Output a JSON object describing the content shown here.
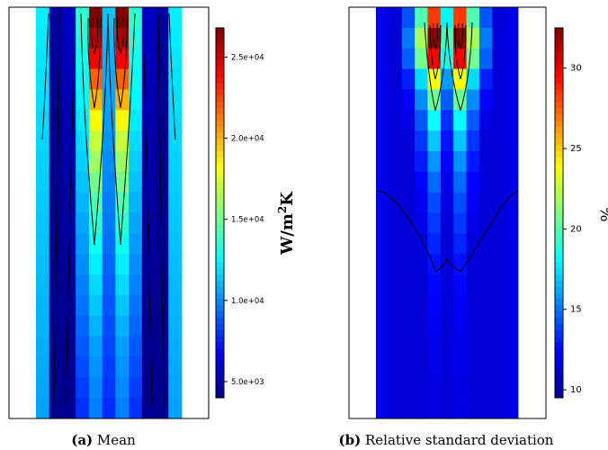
{
  "chart_data": [
    {
      "type": "heatmap",
      "panel_label": "(a)",
      "caption": "Mean",
      "colorbar": {
        "range": [
          4000,
          26800
        ],
        "ticks": [
          {
            "value": 5000,
            "label": "5.0e+03"
          },
          {
            "value": 10000,
            "label": "1.0e+04"
          },
          {
            "value": 15000,
            "label": "1.5e+04"
          },
          {
            "value": 20000,
            "label": "2.0e+04"
          },
          {
            "value": 25000,
            "label": "2.5e+04"
          }
        ],
        "unit_base": "W/m",
        "unit_sup": "2",
        "unit_tail": "K",
        "colors": [
          "#00008F",
          "#0000FF",
          "#0080FF",
          "#00FFFF",
          "#80FF80",
          "#FFFF00",
          "#FF8000",
          "#FF0000",
          "#800000"
        ]
      }
    },
    {
      "type": "heatmap",
      "panel_label": "(b)",
      "caption": "Relative standard deviation",
      "colorbar": {
        "range": [
          9.5,
          32.5
        ],
        "ticks": [
          {
            "value": 10,
            "label": "10"
          },
          {
            "value": 15,
            "label": "15"
          },
          {
            "value": 20,
            "label": "20"
          },
          {
            "value": 25,
            "label": "25"
          },
          {
            "value": 30,
            "label": "30"
          }
        ],
        "unit": "%",
        "colors": [
          "#00008F",
          "#0000FF",
          "#0080FF",
          "#00FFFF",
          "#80FF80",
          "#FFFF00",
          "#FF8000",
          "#FF0000",
          "#800000"
        ]
      }
    }
  ]
}
